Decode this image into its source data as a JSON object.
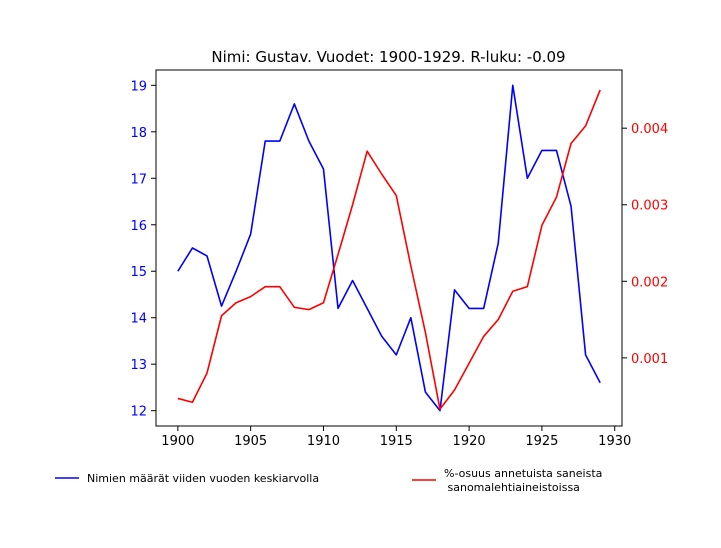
{
  "chart_data": {
    "type": "line",
    "title": "Nimi: Gustav. Vuodet: 1900-1929. R-luku: -0.09",
    "x": [
      1900,
      1901,
      1902,
      1903,
      1904,
      1905,
      1906,
      1907,
      1908,
      1909,
      1910,
      1911,
      1912,
      1913,
      1914,
      1915,
      1916,
      1917,
      1918,
      1919,
      1920,
      1921,
      1922,
      1923,
      1924,
      1925,
      1926,
      1927,
      1928,
      1929
    ],
    "x_ticks": [
      "1900",
      "1905",
      "1910",
      "1915",
      "1920",
      "1925",
      "1930"
    ],
    "x_tick_values": [
      1900,
      1905,
      1910,
      1915,
      1920,
      1925,
      1930
    ],
    "xlim": [
      1898.5,
      1930.5
    ],
    "left_axis": {
      "ylim": [
        11.67,
        19.33
      ],
      "ticks": [
        "12",
        "13",
        "14",
        "15",
        "16",
        "17",
        "18",
        "19"
      ],
      "tick_values": [
        12,
        13,
        14,
        15,
        16,
        17,
        18,
        19
      ],
      "color": "#0000ff"
    },
    "right_axis": {
      "ylim": [
        0.00011,
        0.00476
      ],
      "ticks": [
        "0.001",
        "0.002",
        "0.003",
        "0.004"
      ],
      "tick_values": [
        0.001,
        0.002,
        0.003,
        0.004
      ],
      "color": "#ff0000"
    },
    "series": [
      {
        "name": "Nimien määrät viiden vuoden keskiarvolla",
        "axis": "left",
        "color": "#0000ff",
        "values": [
          15.0,
          15.5,
          15.33,
          14.25,
          15.0,
          15.8,
          17.8,
          17.8,
          18.6,
          17.8,
          17.2,
          14.2,
          14.8,
          14.2,
          13.6,
          13.2,
          14.0,
          12.4,
          12.0,
          14.6,
          14.2,
          14.2,
          15.6,
          19.0,
          17.0,
          17.6,
          17.6,
          16.4,
          13.2,
          12.6
        ]
      },
      {
        "name": "%-osuus annetuista saneista\n sanomalehtiaineistoissa",
        "axis": "right",
        "color": "#ff0000",
        "values": [
          0.00047,
          0.00042,
          0.0008,
          0.00155,
          0.00172,
          0.0018,
          0.00193,
          0.00193,
          0.00166,
          0.00163,
          0.00172,
          0.00235,
          0.003,
          0.0037,
          0.0034,
          0.00312,
          0.0022,
          0.00133,
          0.00033,
          0.00058,
          0.00093,
          0.00128,
          0.0015,
          0.00187,
          0.00193,
          0.00273,
          0.0031,
          0.0038,
          0.00403,
          0.0045
        ]
      }
    ]
  }
}
